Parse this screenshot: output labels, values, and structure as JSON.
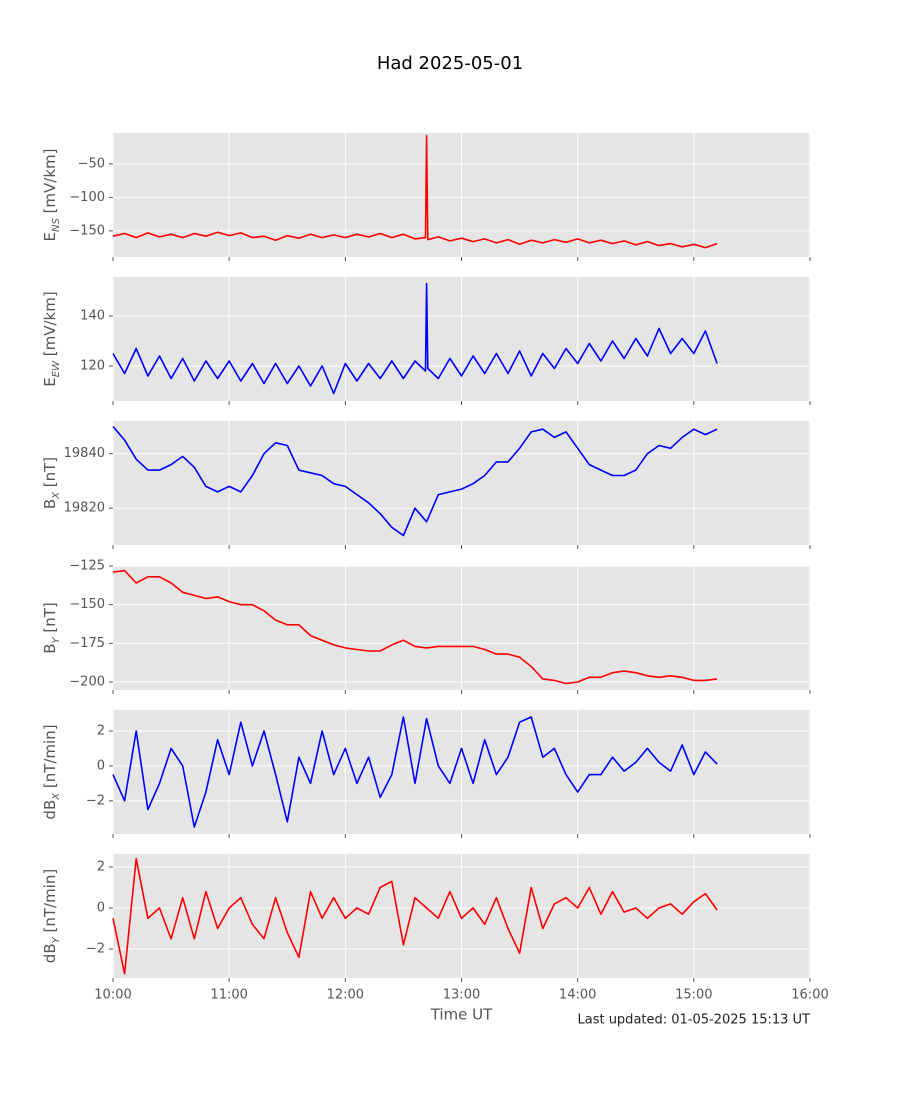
{
  "title": "Had 2025-05-01",
  "footer": "Last updated: 01-05-2025 15:13 UT",
  "chart_data": [
    {
      "type": "line",
      "ylabel": [
        "E",
        "NS",
        " [mV/km]"
      ],
      "color": "#ff0000",
      "x": [
        10.0,
        10.1,
        10.2,
        10.3,
        10.4,
        10.5,
        10.6,
        10.7,
        10.8,
        10.9,
        11.0,
        11.1,
        11.2,
        11.3,
        11.4,
        11.5,
        11.6,
        11.7,
        11.8,
        11.9,
        12.0,
        12.1,
        12.2,
        12.3,
        12.4,
        12.5,
        12.6,
        12.69,
        12.7,
        12.71,
        12.8,
        12.9,
        13.0,
        13.1,
        13.2,
        13.3,
        13.4,
        13.5,
        13.6,
        13.7,
        13.8,
        13.9,
        14.0,
        14.1,
        14.2,
        14.3,
        14.4,
        14.5,
        14.6,
        14.7,
        14.8,
        14.9,
        15.0,
        15.1,
        15.2
      ],
      "values": [
        -158,
        -154,
        -160,
        -153,
        -159,
        -155,
        -160,
        -154,
        -158,
        -152,
        -157,
        -153,
        -160,
        -158,
        -164,
        -157,
        -161,
        -155,
        -160,
        -156,
        -160,
        -155,
        -159,
        -154,
        -160,
        -155,
        -162,
        -160,
        -8,
        -163,
        -159,
        -165,
        -161,
        -166,
        -162,
        -168,
        -163,
        -170,
        -164,
        -168,
        -163,
        -167,
        -162,
        -168,
        -164,
        -169,
        -165,
        -171,
        -166,
        -172,
        -169,
        -174,
        -170,
        -175,
        -169
      ],
      "xlim": [
        10,
        16
      ],
      "xticks": [
        10,
        11,
        12,
        13,
        14,
        15,
        16
      ],
      "ylim": [
        -189,
        -4
      ],
      "yticks": [
        {
          "value": -150,
          "label": "−150"
        },
        {
          "value": -100,
          "label": "−100"
        },
        {
          "value": -50,
          "label": "−50"
        }
      ],
      "grid": true
    },
    {
      "type": "line",
      "ylabel": [
        "E",
        "EW",
        " [mV/km]"
      ],
      "color": "#0000ff",
      "x": [
        10.0,
        10.1,
        10.2,
        10.3,
        10.4,
        10.5,
        10.6,
        10.7,
        10.8,
        10.9,
        11.0,
        11.1,
        11.2,
        11.3,
        11.4,
        11.5,
        11.6,
        11.7,
        11.8,
        11.9,
        12.0,
        12.1,
        12.2,
        12.3,
        12.4,
        12.5,
        12.6,
        12.69,
        12.7,
        12.71,
        12.8,
        12.9,
        13.0,
        13.1,
        13.2,
        13.3,
        13.4,
        13.5,
        13.6,
        13.7,
        13.8,
        13.9,
        14.0,
        14.1,
        14.2,
        14.3,
        14.4,
        14.5,
        14.6,
        14.7,
        14.8,
        14.9,
        15.0,
        15.1,
        15.2
      ],
      "values": [
        125,
        117,
        127,
        116,
        124,
        115,
        123,
        114,
        122,
        115,
        122,
        114,
        121,
        113,
        121,
        113,
        120,
        112,
        120,
        109,
        121,
        114,
        121,
        115,
        122,
        115,
        122,
        118,
        153,
        119,
        115,
        123,
        116,
        124,
        117,
        125,
        117,
        126,
        116,
        125,
        119,
        127,
        121,
        129,
        122,
        130,
        123,
        131,
        124,
        135,
        125,
        131,
        125,
        134,
        121
      ],
      "xlim": [
        10,
        16
      ],
      "xticks": [
        10,
        11,
        12,
        13,
        14,
        15,
        16
      ],
      "ylim": [
        106,
        155.6
      ],
      "yticks": [
        120,
        140
      ],
      "grid": true
    },
    {
      "type": "line",
      "ylabel": [
        "B",
        "X",
        " [nT]"
      ],
      "color": "#0000ff",
      "x": [
        10.0,
        10.1,
        10.2,
        10.3,
        10.4,
        10.5,
        10.6,
        10.7,
        10.8,
        10.9,
        11.0,
        11.1,
        11.2,
        11.3,
        11.4,
        11.5,
        11.6,
        11.7,
        11.8,
        11.9,
        12.0,
        12.1,
        12.2,
        12.3,
        12.4,
        12.5,
        12.6,
        12.7,
        12.8,
        12.9,
        13.0,
        13.1,
        13.2,
        13.3,
        13.4,
        13.5,
        13.6,
        13.7,
        13.8,
        13.9,
        14.0,
        14.1,
        14.2,
        14.3,
        14.4,
        14.5,
        14.6,
        14.7,
        14.8,
        14.9,
        15.0,
        15.1,
        15.2
      ],
      "values": [
        19850,
        19845,
        19838,
        19834,
        19834,
        19836,
        19839,
        19835,
        19828,
        19826,
        19828,
        19826,
        19832,
        19840,
        19844,
        19843,
        19834,
        19833,
        19832,
        19829,
        19828,
        19825,
        19822,
        19818,
        19813,
        19810,
        19820,
        19815,
        19825,
        19826,
        19827,
        19829,
        19832,
        19837,
        19837,
        19842,
        19848,
        19849,
        19846,
        19848,
        19842,
        19836,
        19834,
        19832,
        19832,
        19834,
        19840,
        19843,
        19842,
        19846,
        19849,
        19847,
        19849
      ],
      "xlim": [
        10,
        16
      ],
      "xticks": [
        10,
        11,
        12,
        13,
        14,
        15,
        16
      ],
      "ylim": [
        19806.5,
        19852
      ],
      "yticks": [
        19820,
        19840
      ],
      "grid": true
    },
    {
      "type": "line",
      "ylabel": [
        "B",
        "Y",
        " [nT]"
      ],
      "color": "#ff0000",
      "x": [
        10.0,
        10.1,
        10.2,
        10.3,
        10.4,
        10.5,
        10.6,
        10.7,
        10.8,
        10.9,
        11.0,
        11.1,
        11.2,
        11.3,
        11.4,
        11.5,
        11.6,
        11.7,
        11.8,
        11.9,
        12.0,
        12.1,
        12.2,
        12.3,
        12.4,
        12.5,
        12.6,
        12.7,
        12.8,
        12.9,
        13.0,
        13.1,
        13.2,
        13.3,
        13.4,
        13.5,
        13.6,
        13.7,
        13.8,
        13.9,
        14.0,
        14.1,
        14.2,
        14.3,
        14.4,
        14.5,
        14.6,
        14.7,
        14.8,
        14.9,
        15.0,
        15.1,
        15.2
      ],
      "values": [
        -129,
        -128,
        -136,
        -132,
        -132,
        -136,
        -142,
        -144,
        -146,
        -145,
        -148,
        -150,
        -150,
        -154,
        -160,
        -163,
        -163,
        -170,
        -173,
        -176,
        -178,
        -179,
        -180,
        -180,
        -176,
        -173,
        -177,
        -178,
        -177,
        -177,
        -177,
        -177,
        -179,
        -182,
        -182,
        -184,
        -190,
        -198,
        -199,
        -201,
        -200,
        -197,
        -197,
        -194,
        -193,
        -194,
        -196,
        -197,
        -196,
        -197,
        -199,
        -199,
        -198
      ],
      "xlim": [
        10,
        16
      ],
      "xticks": [
        10,
        11,
        12,
        13,
        14,
        15,
        16
      ],
      "ylim": [
        -205.2,
        -125
      ],
      "yticks": [
        {
          "value": -200,
          "label": "−200"
        },
        {
          "value": -175,
          "label": "−175"
        },
        {
          "value": -150,
          "label": "−150"
        },
        {
          "value": -125,
          "label": "−125"
        }
      ],
      "grid": true
    },
    {
      "type": "line",
      "ylabel": [
        "dB",
        "X",
        " [nT/min]"
      ],
      "color": "#0000ff",
      "x": [
        10.0,
        10.1,
        10.2,
        10.3,
        10.4,
        10.5,
        10.6,
        10.7,
        10.8,
        10.9,
        11.0,
        11.1,
        11.2,
        11.3,
        11.4,
        11.5,
        11.6,
        11.7,
        11.8,
        11.9,
        12.0,
        12.1,
        12.2,
        12.3,
        12.4,
        12.5,
        12.6,
        12.7,
        12.8,
        12.9,
        13.0,
        13.1,
        13.2,
        13.3,
        13.4,
        13.5,
        13.6,
        13.7,
        13.8,
        13.9,
        14.0,
        14.1,
        14.2,
        14.3,
        14.4,
        14.5,
        14.6,
        14.7,
        14.8,
        14.9,
        15.0,
        15.1,
        15.2
      ],
      "values": [
        -0.5,
        -2,
        2,
        -2.5,
        -1,
        1,
        0,
        -3.5,
        -1.5,
        1.5,
        -0.5,
        2.5,
        0,
        2,
        -0.5,
        -3.2,
        0.5,
        -1,
        2,
        -0.5,
        1,
        -1,
        0.5,
        -1.8,
        -0.5,
        2.8,
        -1,
        2.7,
        0,
        -1,
        1,
        -1,
        1.5,
        -0.5,
        0.5,
        2.5,
        2.8,
        0.5,
        1,
        -0.5,
        -1.5,
        -0.5,
        -0.5,
        0.5,
        -0.3,
        0.2,
        1,
        0.2,
        -0.3,
        1.2,
        -0.5,
        0.8,
        0.1
      ],
      "xlim": [
        10,
        16
      ],
      "xticks": [
        10,
        11,
        12,
        13,
        14,
        15,
        16
      ],
      "ylim": [
        -3.9,
        3.2
      ],
      "yticks": [
        {
          "value": -2,
          "label": "−2"
        },
        0,
        2
      ],
      "grid": true
    },
    {
      "type": "line",
      "ylabel": [
        "dB",
        "Y",
        " [nT/min]"
      ],
      "xlabel": "Time UT",
      "color": "#ff0000",
      "x": [
        10.0,
        10.1,
        10.2,
        10.3,
        10.4,
        10.5,
        10.6,
        10.7,
        10.8,
        10.9,
        11.0,
        11.1,
        11.2,
        11.3,
        11.4,
        11.5,
        11.6,
        11.7,
        11.8,
        11.9,
        12.0,
        12.1,
        12.2,
        12.3,
        12.4,
        12.5,
        12.6,
        12.7,
        12.8,
        12.9,
        13.0,
        13.1,
        13.2,
        13.3,
        13.4,
        13.5,
        13.6,
        13.7,
        13.8,
        13.9,
        14.0,
        14.1,
        14.2,
        14.3,
        14.4,
        14.5,
        14.6,
        14.7,
        14.8,
        14.9,
        15.0,
        15.1,
        15.2
      ],
      "values": [
        -0.5,
        -3.2,
        2.4,
        -0.5,
        0,
        -1.5,
        0.5,
        -1.5,
        0.8,
        -1,
        0,
        0.5,
        -0.8,
        -1.5,
        0.5,
        -1.2,
        -2.4,
        0.8,
        -0.5,
        0.5,
        -0.5,
        0,
        -0.3,
        1,
        1.3,
        -1.8,
        0.5,
        0,
        -0.5,
        0.8,
        -0.5,
        0,
        -0.8,
        0.5,
        -1,
        -2.2,
        1,
        -1,
        0.2,
        0.5,
        0,
        1,
        -0.3,
        0.8,
        -0.2,
        0,
        -0.5,
        0,
        0.2,
        -0.3,
        0.3,
        0.7,
        -0.1
      ],
      "xlim": [
        10,
        16
      ],
      "xticks": [
        {
          "value": 10,
          "label": "10:00"
        },
        {
          "value": 11,
          "label": "11:00"
        },
        {
          "value": 12,
          "label": "12:00"
        },
        {
          "value": 13,
          "label": "13:00"
        },
        {
          "value": 14,
          "label": "14:00"
        },
        {
          "value": 15,
          "label": "15:00"
        },
        {
          "value": 16,
          "label": "16:00"
        }
      ],
      "ylim": [
        -3.41,
        2.63
      ],
      "yticks": [
        {
          "value": -2,
          "label": "−2"
        },
        0,
        2
      ],
      "grid": true
    }
  ]
}
